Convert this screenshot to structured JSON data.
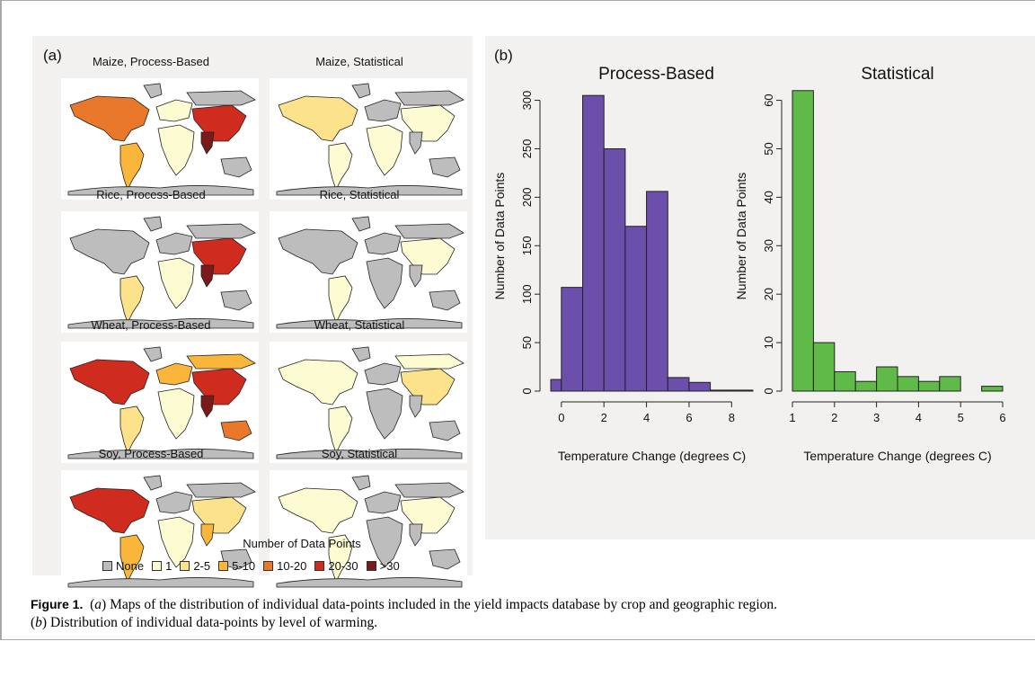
{
  "panels": {
    "a_label": "(a)",
    "b_label": "(b)"
  },
  "maps": [
    {
      "title": "Maize, Process-Based"
    },
    {
      "title": "Maize, Statistical"
    },
    {
      "title": "Rice, Process-Based"
    },
    {
      "title": "Rice, Statistical"
    },
    {
      "title": "Wheat, Process-Based"
    },
    {
      "title": "Wheat, Statistical"
    },
    {
      "title": "Soy, Process-Based"
    },
    {
      "title": "Soy, Statistical"
    }
  ],
  "legend": {
    "title": "Number of Data Points",
    "items": [
      {
        "label": "None",
        "color": "#bdbdbd"
      },
      {
        "label": "1",
        "color": "#fdfbd2"
      },
      {
        "label": "2-5",
        "color": "#fde28c"
      },
      {
        "label": "5-10",
        "color": "#f9b63a"
      },
      {
        "label": "10-20",
        "color": "#e9782a"
      },
      {
        "label": "20-30",
        "color": "#cf2c1f"
      },
      {
        "label": ">30",
        "color": "#7a1a1a"
      }
    ]
  },
  "chart_data": [
    {
      "type": "bar",
      "title": "Process-Based",
      "xlabel": "Temperature Change (degrees C)",
      "ylabel": "Number of Data Points",
      "color": "#6b4faa",
      "bin_edges": [
        -0.5,
        0,
        1,
        2,
        3,
        4,
        5,
        6,
        7,
        8,
        9
      ],
      "values": [
        12,
        107,
        305,
        250,
        170,
        206,
        14,
        9,
        1,
        1
      ],
      "xticks": [
        0,
        2,
        4,
        6,
        8
      ],
      "yticks": [
        0,
        50,
        100,
        150,
        200,
        250,
        300
      ],
      "xlim": [
        -0.5,
        9
      ],
      "ylim": [
        0,
        320
      ]
    },
    {
      "type": "bar",
      "title": "Statistical",
      "xlabel": "Temperature Change (degrees C)",
      "ylabel": "Number of Data Points",
      "color": "#5fba47",
      "bin_edges": [
        1,
        1.5,
        2,
        2.5,
        3,
        3.5,
        4,
        4.5,
        5,
        5.5,
        6
      ],
      "values": [
        62,
        10,
        4,
        2,
        5,
        3,
        2,
        3,
        0,
        1
      ],
      "xticks": [
        1,
        2,
        3,
        4,
        5,
        6
      ],
      "yticks": [
        0,
        10,
        20,
        30,
        40,
        50,
        60
      ],
      "xlim": [
        1,
        6
      ],
      "ylim": [
        0,
        64
      ]
    }
  ],
  "caption": {
    "figure_label": "Figure 1.",
    "a_letter": "a",
    "a_text": " Maps of the distribution of individual data-points included in the yield impacts database by crop and geographic region.",
    "b_letter": "b",
    "b_text": " Distribution of individual data-points by level of warming."
  }
}
